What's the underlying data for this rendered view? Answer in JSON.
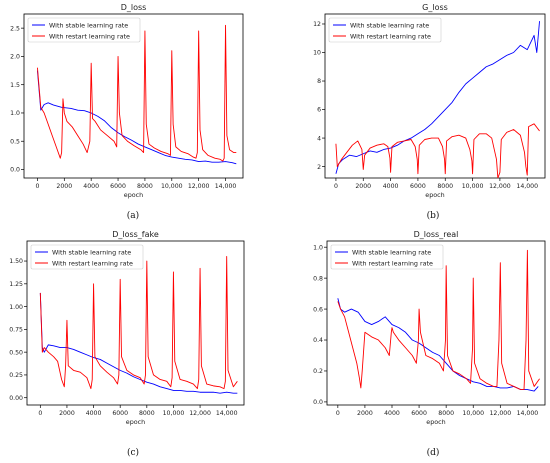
{
  "chart_data": [
    {
      "type": "line",
      "panel": "(a)",
      "title": "D_loss",
      "xlabel": "epoch",
      "ylabel": "",
      "xlim": [
        -1000,
        15300
      ],
      "ylim": [
        -0.15,
        2.75
      ],
      "xticks": [
        0,
        2000,
        4000,
        6000,
        8000,
        10000,
        12000,
        14000
      ],
      "xtick_labels": [
        "0",
        "2000",
        "4000",
        "6000",
        "8000",
        "10,000",
        "12,000",
        "14,000"
      ],
      "yticks": [
        0.0,
        0.5,
        1.0,
        1.5,
        2.0,
        2.5
      ],
      "ytick_labels": [
        "0.0",
        "0.5",
        "1.0",
        "1.5",
        "2.0",
        "2.5"
      ],
      "legend": "top-left",
      "series": [
        {
          "name": "With stable learning rate",
          "color": "#0000ff",
          "x": [
            0,
            250,
            500,
            800,
            1200,
            1800,
            2500,
            3000,
            3500,
            4000,
            4500,
            5000,
            5500,
            6000,
            6500,
            7000,
            7500,
            8000,
            8500,
            9000,
            9500,
            10000,
            10500,
            11000,
            11500,
            12000,
            12500,
            13000,
            13500,
            14000,
            14500,
            14800
          ],
          "y": [
            1.75,
            1.05,
            1.15,
            1.18,
            1.14,
            1.1,
            1.08,
            1.05,
            1.04,
            1.0,
            0.94,
            0.86,
            0.74,
            0.65,
            0.58,
            0.52,
            0.45,
            0.4,
            0.35,
            0.3,
            0.25,
            0.22,
            0.2,
            0.18,
            0.17,
            0.14,
            0.15,
            0.13,
            0.13,
            0.14,
            0.12,
            0.1
          ]
        },
        {
          "name": "With restart learning rate",
          "color": "#ff0000",
          "x": [
            0,
            250,
            500,
            800,
            1100,
            1400,
            1700,
            1800,
            1900,
            2000,
            2200,
            2600,
            3000,
            3400,
            3700,
            3900,
            4000,
            4100,
            4300,
            4700,
            5200,
            5700,
            5900,
            6000,
            6100,
            6300,
            6700,
            7200,
            7700,
            7900,
            8000,
            8100,
            8300,
            8700,
            9200,
            9700,
            9900,
            10000,
            10100,
            10300,
            10700,
            11200,
            11600,
            11800,
            11900,
            12000,
            12100,
            12300,
            12700,
            13200,
            13600,
            13800,
            13900,
            14000,
            14100,
            14300,
            14600,
            14800
          ],
          "y": [
            1.8,
            1.1,
            1.0,
            0.8,
            0.6,
            0.4,
            0.2,
            0.3,
            1.25,
            1.0,
            0.85,
            0.75,
            0.6,
            0.45,
            0.3,
            0.5,
            1.88,
            0.9,
            0.85,
            0.7,
            0.6,
            0.5,
            0.4,
            2.0,
            1.0,
            0.6,
            0.5,
            0.42,
            0.35,
            0.3,
            2.45,
            0.8,
            0.45,
            0.38,
            0.32,
            0.28,
            0.25,
            2.1,
            0.8,
            0.4,
            0.32,
            0.28,
            0.22,
            0.2,
            0.3,
            2.45,
            0.7,
            0.35,
            0.25,
            0.2,
            0.18,
            0.15,
            0.2,
            2.55,
            0.6,
            0.35,
            0.3,
            0.3
          ]
        }
      ]
    },
    {
      "type": "line",
      "panel": "(b)",
      "title": "G_loss",
      "xlabel": "epoch",
      "ylabel": "",
      "xlim": [
        -800,
        15300
      ],
      "ylim": [
        1.2,
        12.7
      ],
      "xticks": [
        0,
        2000,
        4000,
        6000,
        8000,
        10000,
        12000,
        14000
      ],
      "xtick_labels": [
        "0",
        "2000",
        "4000",
        "6000",
        "8000",
        "10,000",
        "12,000",
        "14,000"
      ],
      "yticks": [
        2,
        4,
        6,
        8,
        10,
        12
      ],
      "ytick_labels": [
        "2",
        "4",
        "6",
        "8",
        "10",
        "12"
      ],
      "legend": "top-left",
      "series": [
        {
          "name": "With stable learning rate",
          "color": "#0000ff",
          "x": [
            0,
            200,
            500,
            1000,
            1500,
            2000,
            2500,
            3000,
            3500,
            4000,
            4500,
            5000,
            5500,
            6000,
            6500,
            7000,
            7500,
            8000,
            8500,
            9000,
            9500,
            10000,
            10500,
            11000,
            11500,
            12000,
            12500,
            13000,
            13500,
            14000,
            14500,
            14700,
            14900
          ],
          "y": [
            1.5,
            2.2,
            2.5,
            2.8,
            2.7,
            2.9,
            3.1,
            3.0,
            3.2,
            3.3,
            3.5,
            3.8,
            4.0,
            4.3,
            4.6,
            5.0,
            5.5,
            6.0,
            6.5,
            7.2,
            7.8,
            8.2,
            8.6,
            9.0,
            9.2,
            9.5,
            9.8,
            10.0,
            10.5,
            10.2,
            11.2,
            10.0,
            12.2
          ]
        },
        {
          "name": "With restart learning rate",
          "color": "#ff0000",
          "x": [
            0,
            100,
            400,
            800,
            1200,
            1600,
            1900,
            2000,
            2100,
            2500,
            3000,
            3500,
            3800,
            3950,
            4000,
            4100,
            4500,
            5000,
            5500,
            5800,
            5950,
            6000,
            6100,
            6500,
            7000,
            7500,
            7800,
            7950,
            8000,
            8100,
            8500,
            9000,
            9500,
            9800,
            9950,
            10000,
            10100,
            10500,
            11000,
            11400,
            11750,
            11850,
            12000,
            12100,
            12500,
            13000,
            13500,
            13800,
            13900,
            14000,
            14100,
            14500,
            14900
          ],
          "y": [
            3.6,
            2.0,
            2.5,
            3.0,
            3.5,
            3.8,
            3.2,
            1.8,
            2.8,
            3.3,
            3.5,
            3.6,
            3.4,
            2.6,
            1.6,
            3.4,
            3.7,
            3.8,
            3.9,
            3.4,
            2.5,
            1.5,
            3.5,
            3.9,
            4.0,
            4.0,
            3.4,
            2.5,
            1.5,
            3.8,
            4.1,
            4.2,
            4.0,
            3.2,
            2.4,
            1.5,
            3.9,
            4.3,
            4.3,
            4.0,
            2.5,
            1.2,
            1.6,
            3.9,
            4.4,
            4.6,
            4.2,
            3.0,
            2.0,
            1.4,
            4.8,
            5.0,
            4.5
          ]
        }
      ]
    },
    {
      "type": "line",
      "panel": "(c)",
      "title": "D_loss_fake",
      "xlabel": "epoch",
      "ylabel": "",
      "xlim": [
        -1000,
        15300
      ],
      "ylim": [
        -0.08,
        1.72
      ],
      "xticks": [
        0,
        2000,
        4000,
        6000,
        8000,
        10000,
        12000,
        14000
      ],
      "xtick_labels": [
        "0",
        "2000",
        "4000",
        "6000",
        "8000",
        "10,000",
        "12,000",
        "14,000"
      ],
      "yticks": [
        0.0,
        0.25,
        0.5,
        0.75,
        1.0,
        1.25,
        1.5
      ],
      "ytick_labels": [
        "0.00",
        "0.25",
        "0.50",
        "0.75",
        "1.00",
        "1.25",
        "1.50"
      ],
      "legend": "top-left",
      "series": [
        {
          "name": "With stable learning rate",
          "color": "#0000ff",
          "x": [
            0,
            150,
            300,
            600,
            1000,
            1500,
            2000,
            2500,
            3000,
            3500,
            4000,
            4500,
            5000,
            5500,
            6000,
            6500,
            7000,
            7500,
            8000,
            8500,
            9000,
            9500,
            10000,
            10500,
            11000,
            11500,
            12000,
            12500,
            13000,
            13500,
            14000,
            14500,
            14800
          ],
          "y": [
            1.15,
            0.55,
            0.5,
            0.58,
            0.57,
            0.55,
            0.55,
            0.53,
            0.5,
            0.47,
            0.44,
            0.42,
            0.38,
            0.34,
            0.3,
            0.27,
            0.23,
            0.2,
            0.17,
            0.15,
            0.12,
            0.1,
            0.08,
            0.08,
            0.07,
            0.07,
            0.06,
            0.06,
            0.06,
            0.05,
            0.06,
            0.05,
            0.05
          ]
        },
        {
          "name": "With restart learning rate",
          "color": "#ff0000",
          "x": [
            0,
            150,
            300,
            600,
            1000,
            1300,
            1600,
            1800,
            1900,
            2000,
            2100,
            2500,
            3000,
            3500,
            3800,
            3900,
            4000,
            4100,
            4500,
            5000,
            5500,
            5800,
            5900,
            6000,
            6100,
            6500,
            7000,
            7500,
            7800,
            7900,
            8000,
            8100,
            8500,
            9000,
            9500,
            9800,
            9900,
            10000,
            10100,
            10500,
            11000,
            11500,
            11800,
            11900,
            12000,
            12100,
            12500,
            13000,
            13500,
            13800,
            13900,
            14000,
            14100,
            14500,
            14800
          ],
          "y": [
            1.15,
            0.5,
            0.55,
            0.5,
            0.45,
            0.4,
            0.2,
            0.12,
            0.35,
            0.85,
            0.35,
            0.3,
            0.28,
            0.22,
            0.1,
            0.2,
            1.25,
            0.45,
            0.35,
            0.28,
            0.22,
            0.15,
            0.25,
            1.3,
            0.45,
            0.3,
            0.25,
            0.22,
            0.15,
            0.25,
            1.5,
            0.45,
            0.25,
            0.2,
            0.18,
            0.12,
            0.22,
            1.38,
            0.4,
            0.2,
            0.18,
            0.15,
            0.1,
            0.2,
            1.42,
            0.35,
            0.15,
            0.13,
            0.12,
            0.1,
            0.18,
            1.55,
            0.3,
            0.12,
            0.18
          ]
        }
      ]
    },
    {
      "type": "line",
      "panel": "(d)",
      "title": "D_loss_real",
      "xlabel": "epoch",
      "ylabel": "",
      "xlim": [
        -800,
        15300
      ],
      "ylim": [
        -0.02,
        1.04
      ],
      "xticks": [
        0,
        2000,
        4000,
        6000,
        8000,
        10000,
        12000,
        14000
      ],
      "xtick_labels": [
        "0",
        "2000",
        "4000",
        "6000",
        "8000",
        "10,000",
        "12,000",
        "14,000"
      ],
      "yticks": [
        0.0,
        0.2,
        0.4,
        0.6,
        0.8,
        1.0
      ],
      "ytick_labels": [
        "0.0",
        "0.2",
        "0.4",
        "0.6",
        "0.8",
        "1.0"
      ],
      "legend": "top-left",
      "series": [
        {
          "name": "With stable learning rate",
          "color": "#0000ff",
          "x": [
            0,
            200,
            500,
            1000,
            1500,
            2000,
            2500,
            3000,
            3500,
            4000,
            4500,
            5000,
            5500,
            6000,
            6500,
            7000,
            7500,
            8000,
            8500,
            9000,
            9500,
            10000,
            10500,
            11000,
            11500,
            12000,
            12500,
            13000,
            13500,
            14000,
            14500,
            14800
          ],
          "y": [
            0.67,
            0.6,
            0.58,
            0.6,
            0.58,
            0.52,
            0.5,
            0.52,
            0.55,
            0.5,
            0.48,
            0.45,
            0.4,
            0.38,
            0.35,
            0.32,
            0.3,
            0.25,
            0.2,
            0.17,
            0.15,
            0.13,
            0.12,
            0.1,
            0.1,
            0.09,
            0.09,
            0.1,
            0.08,
            0.08,
            0.07,
            0.1
          ]
        },
        {
          "name": "With restart learning rate",
          "color": "#ff0000",
          "x": [
            0,
            200,
            500,
            800,
            1100,
            1400,
            1600,
            1700,
            1800,
            2000,
            2500,
            3000,
            3500,
            3800,
            3950,
            4000,
            4100,
            4500,
            5000,
            5500,
            5800,
            5950,
            6000,
            6100,
            6500,
            7000,
            7500,
            7800,
            7950,
            8000,
            8100,
            8500,
            9000,
            9500,
            9800,
            9950,
            10000,
            10100,
            10500,
            11000,
            11500,
            11750,
            11900,
            12000,
            12100,
            12500,
            13000,
            13500,
            13750,
            13900,
            14000,
            14100,
            14500,
            14900
          ],
          "y": [
            0.65,
            0.6,
            0.55,
            0.45,
            0.35,
            0.25,
            0.15,
            0.09,
            0.2,
            0.45,
            0.42,
            0.4,
            0.35,
            0.3,
            0.45,
            0.48,
            0.45,
            0.4,
            0.35,
            0.3,
            0.25,
            0.4,
            0.6,
            0.45,
            0.3,
            0.28,
            0.25,
            0.2,
            0.4,
            0.88,
            0.3,
            0.2,
            0.18,
            0.15,
            0.12,
            0.35,
            0.8,
            0.25,
            0.15,
            0.12,
            0.1,
            0.1,
            0.4,
            0.9,
            0.25,
            0.12,
            0.1,
            0.08,
            0.08,
            0.4,
            0.98,
            0.2,
            0.1,
            0.15
          ]
        }
      ]
    }
  ]
}
